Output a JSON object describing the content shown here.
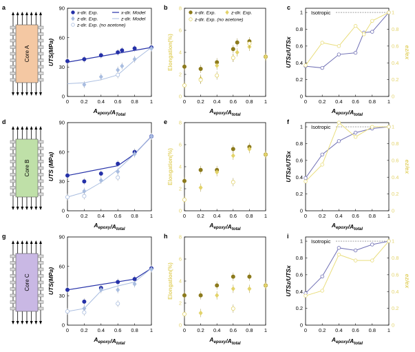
{
  "colors": {
    "dark_blue": "#2531a8",
    "light_blue": "#a9bde0",
    "dark_gold": "#8c7a1c",
    "light_gold": "#e3d36a",
    "ratio_blue": "#6f6fb4",
    "ratio_gold": "#e9dd7c",
    "core_a": "#f4c8a3",
    "core_b": "#bfe0a8",
    "core_c": "#c9b8e4"
  },
  "panel_letters": [
    "a",
    "b",
    "c",
    "d",
    "e",
    "f",
    "g",
    "h",
    "i"
  ],
  "cores": [
    "Core A",
    "Core B",
    "Core C"
  ],
  "labels": {
    "x_uts": "A_epoxy/A_Total",
    "x_uts_2": "A_epoxy/A_total",
    "x_elong": "A_epoxy/A_total",
    "x_ratio": "A_epoxy/A_total",
    "y_uts_a": "UTS(MPa)",
    "y_uts_b": "UTS (MPa)",
    "y_uts_c": "UTS(MPa)",
    "y_elong": "Elongation(%)",
    "y_ratio_left": "UTS_z/UTS_x",
    "y_ratio_right": "e_z/e_x",
    "isotropic": "Isotropic"
  },
  "legend_uts": [
    "x-dir. Exp.",
    "z-dir. Exp.",
    "z-dir. Exp. (no acetone)",
    "x-dir. Model",
    "z-dir. Model"
  ],
  "legend_elong": [
    "x-dir. Exp.",
    "z-dir. Exp.",
    "z-dir. Exp. (no acetone)"
  ],
  "chart_data": [
    {
      "panel": "a",
      "type": "scatter",
      "core": "Core A",
      "xlabel": "A_epoxy/A_Total",
      "ylabel": "UTS(MPa)",
      "xlim": [
        0,
        1
      ],
      "ylim": [
        0,
        90
      ],
      "xticks": [
        0,
        0.2,
        0.4,
        0.6,
        0.8,
        1
      ],
      "yticks": [
        0,
        30,
        60,
        90
      ],
      "series": [
        {
          "name": "x-dir. Exp.",
          "kind": "points",
          "x": [
            0,
            0.2,
            0.4,
            0.6,
            0.65,
            0.8,
            1
          ],
          "y": [
            36,
            38,
            42,
            45,
            47,
            49,
            50
          ]
        },
        {
          "name": "z-dir. Exp.",
          "kind": "points",
          "x": [
            0.2,
            0.4,
            0.6,
            0.65,
            0.8,
            1
          ],
          "y": [
            12,
            20,
            27,
            31,
            38,
            49
          ]
        },
        {
          "name": "z-dir. Exp. (no acetone)",
          "kind": "open",
          "x": [
            0.6
          ],
          "y": [
            22
          ]
        },
        {
          "name": "x-dir. Model",
          "kind": "line",
          "x": [
            0,
            1
          ],
          "y": [
            35,
            50
          ]
        },
        {
          "name": "z-dir. Model",
          "kind": "line",
          "x": [
            0,
            0.2,
            0.4,
            0.6,
            0.8,
            1
          ],
          "y": [
            13,
            14,
            17,
            22,
            37,
            50
          ]
        }
      ]
    },
    {
      "panel": "b",
      "type": "scatter",
      "xlabel": "A_epoxy/A_total",
      "ylabel": "Elongation(%)",
      "xlim": [
        0,
        1
      ],
      "ylim": [
        0,
        8
      ],
      "xticks": [
        0,
        0.2,
        0.4,
        0.6,
        0.8,
        1
      ],
      "yticks": [
        0,
        2,
        4,
        6,
        8
      ],
      "series": [
        {
          "name": "x-dir. Exp.",
          "kind": "points",
          "x": [
            0,
            0.2,
            0.4,
            0.6,
            0.65,
            0.8,
            1
          ],
          "y": [
            2.7,
            2.5,
            3.1,
            4.3,
            4.9,
            5.0,
            3.6
          ]
        },
        {
          "name": "z-dir. Exp.",
          "kind": "points",
          "x": [
            0.2,
            0.4,
            0.6,
            0.65,
            0.8,
            1
          ],
          "y": [
            1.6,
            2.8,
            3.5,
            4.0,
            4.5,
            3.6
          ]
        },
        {
          "name": "z-dir. Exp. (no acetone)",
          "kind": "open",
          "x": [
            0,
            0.2,
            0.4,
            0.6,
            0.8
          ],
          "y": [
            1.0,
            1.5,
            1.9,
            3.5,
            4.8
          ]
        }
      ]
    },
    {
      "panel": "c",
      "type": "line",
      "xlabel": "A_epoxy/A_total",
      "ylabel": "UTS_z/UTS_x",
      "ylabel_right": "e_z/e_x",
      "xlim": [
        0,
        1
      ],
      "ylim": [
        0,
        1
      ],
      "xticks": [
        0,
        0.2,
        0.4,
        0.6,
        0.8,
        1
      ],
      "yticks": [
        0,
        0.2,
        0.4,
        0.6,
        0.8,
        1
      ],
      "series": [
        {
          "name": "UTS_z/UTS_x",
          "x": [
            0,
            0.2,
            0.4,
            0.6,
            0.7,
            0.8,
            1
          ],
          "y": [
            0.36,
            0.34,
            0.5,
            0.52,
            0.76,
            0.77,
            1.0
          ]
        },
        {
          "name": "e_z/e_x",
          "x": [
            0,
            0.2,
            0.4,
            0.6,
            0.7,
            0.8,
            1
          ],
          "y": [
            0.37,
            0.64,
            0.6,
            0.84,
            0.74,
            0.9,
            1.0
          ]
        }
      ]
    },
    {
      "panel": "d",
      "type": "scatter",
      "core": "Core B",
      "xlabel": "A_epoxy/A_total",
      "ylabel": "UTS (MPa)",
      "xlim": [
        0,
        1
      ],
      "ylim": [
        0,
        90
      ],
      "xticks": [
        0,
        0.2,
        0.4,
        0.6,
        0.8,
        1
      ],
      "yticks": [
        0,
        30,
        60,
        90
      ],
      "series": [
        {
          "name": "x-dir. Exp.",
          "kind": "points",
          "x": [
            0,
            0.2,
            0.4,
            0.6,
            0.8,
            1
          ],
          "y": [
            36,
            30,
            38,
            48,
            60,
            76
          ]
        },
        {
          "name": "z-dir. Exp.",
          "kind": "points",
          "x": [
            0.2,
            0.4,
            0.6,
            0.8,
            1
          ],
          "y": [
            20,
            31,
            40,
            58,
            76
          ]
        },
        {
          "name": "z-dir. Exp. (no acetone)",
          "kind": "open",
          "x": [
            0,
            0.2,
            0.6
          ],
          "y": [
            14,
            15,
            34
          ]
        },
        {
          "name": "x-dir. Model",
          "kind": "line",
          "x": [
            0,
            0.6,
            0.8,
            1
          ],
          "y": [
            36,
            46,
            58,
            76
          ]
        },
        {
          "name": "z-dir. Model",
          "kind": "line",
          "x": [
            0,
            0.2,
            0.4,
            0.6,
            0.8,
            1
          ],
          "y": [
            14,
            19,
            29,
            42,
            58,
            76
          ]
        }
      ]
    },
    {
      "panel": "e",
      "type": "scatter",
      "xlabel": "A_epoxy/A_total",
      "ylabel": "Elongation(%)",
      "xlim": [
        0,
        1
      ],
      "ylim": [
        0,
        8
      ],
      "xticks": [
        0,
        0.2,
        0.4,
        0.6,
        0.8,
        1
      ],
      "yticks": [
        0,
        2,
        4,
        6,
        8
      ],
      "series": [
        {
          "name": "x-dir. Exp.",
          "kind": "points",
          "x": [
            0,
            0.2,
            0.4,
            0.6,
            0.8,
            1
          ],
          "y": [
            2.7,
            3.7,
            3.7,
            5.6,
            5.8,
            5.1
          ]
        },
        {
          "name": "z-dir. Exp.",
          "kind": "points",
          "x": [
            0.2,
            0.4,
            0.6,
            0.8,
            1
          ],
          "y": [
            2.1,
            3.5,
            5.0,
            5.6,
            5.1
          ]
        },
        {
          "name": "z-dir. Exp. (no acetone)",
          "kind": "open",
          "x": [
            0,
            0.6
          ],
          "y": [
            1.0,
            2.6
          ]
        }
      ]
    },
    {
      "panel": "f",
      "type": "line",
      "xlabel": "A_epoxy/A_total",
      "ylabel": "UTS_z/UTS_x",
      "ylabel_right": "e_z/e_x",
      "xlim": [
        0,
        1
      ],
      "ylim": [
        0,
        1
      ],
      "xticks": [
        0,
        0.2,
        0.4,
        0.6,
        0.8,
        1
      ],
      "yticks": [
        0,
        0.2,
        0.4,
        0.6,
        0.8,
        1
      ],
      "series": [
        {
          "name": "UTS_z/UTS_x",
          "x": [
            0,
            0.2,
            0.4,
            0.6,
            0.8,
            1
          ],
          "y": [
            0.39,
            0.67,
            0.83,
            0.93,
            0.98,
            1.0
          ]
        },
        {
          "name": "e_z/e_x",
          "x": [
            0,
            0.2,
            0.4,
            0.6,
            0.8,
            1
          ],
          "y": [
            0.35,
            0.55,
            1.05,
            0.88,
            1.0,
            1.0
          ]
        }
      ]
    },
    {
      "panel": "g",
      "type": "scatter",
      "core": "Core C",
      "xlabel": "A_epoxy/A_total",
      "ylabel": "UTS(MPa)",
      "xlim": [
        0,
        1
      ],
      "ylim": [
        0,
        90
      ],
      "xticks": [
        0,
        0.2,
        0.4,
        0.6,
        0.8,
        1
      ],
      "yticks": [
        0,
        30,
        60,
        90
      ],
      "series": [
        {
          "name": "x-dir. Exp.",
          "kind": "points",
          "x": [
            0,
            0.2,
            0.4,
            0.6,
            0.8,
            1
          ],
          "y": [
            36,
            24,
            38,
            44,
            47,
            58
          ]
        },
        {
          "name": "z-dir. Exp.",
          "kind": "points",
          "x": [
            0.2,
            0.4,
            0.6,
            0.8,
            1
          ],
          "y": [
            17,
            36,
            36,
            42,
            57
          ]
        },
        {
          "name": "z-dir. Exp. (no acetone)",
          "kind": "open",
          "x": [
            0,
            0.2,
            0.6
          ],
          "y": [
            14,
            13,
            22
          ]
        },
        {
          "name": "x-dir. Model",
          "kind": "line",
          "x": [
            0,
            0.8,
            1
          ],
          "y": [
            36,
            47,
            58
          ]
        },
        {
          "name": "z-dir. Model",
          "kind": "line",
          "x": [
            0,
            0.2,
            0.4,
            0.6,
            0.8,
            1
          ],
          "y": [
            14,
            17,
            35,
            40,
            44,
            58
          ]
        }
      ]
    },
    {
      "panel": "h",
      "type": "scatter",
      "xlabel": "A_epoxy/A_total",
      "ylabel": "Elongation(%)",
      "xlim": [
        0,
        1
      ],
      "ylim": [
        0,
        8
      ],
      "xticks": [
        0,
        0.2,
        0.4,
        0.6,
        0.8,
        1
      ],
      "yticks": [
        0,
        2,
        4,
        6,
        8
      ],
      "series": [
        {
          "name": "x-dir. Exp.",
          "kind": "points",
          "x": [
            0,
            0.2,
            0.4,
            0.6,
            0.8,
            1
          ],
          "y": [
            2.7,
            2.7,
            3.6,
            4.4,
            4.4,
            3.6
          ]
        },
        {
          "name": "z-dir. Exp.",
          "kind": "points",
          "x": [
            0.2,
            0.4,
            0.6,
            0.8,
            1
          ],
          "y": [
            1.1,
            2.7,
            3.3,
            3.3,
            3.6
          ]
        },
        {
          "name": "z-dir. Exp. (no acetone)",
          "kind": "open",
          "x": [
            0,
            0.6
          ],
          "y": [
            1.0,
            1.5
          ]
        }
      ]
    },
    {
      "panel": "i",
      "type": "line",
      "xlabel": "A_epoxy/A_total",
      "ylabel": "UTS_z/UTS_x",
      "ylabel_right": "e_z/e_x",
      "xlim": [
        0,
        1
      ],
      "ylim": [
        0,
        1
      ],
      "xticks": [
        0,
        0.2,
        0.4,
        0.6,
        0.8,
        1
      ],
      "yticks": [
        0,
        0.2,
        0.4,
        0.6,
        0.8,
        1
      ],
      "series": [
        {
          "name": "UTS_z/UTS_x",
          "x": [
            0,
            0.2,
            0.4,
            0.6,
            0.8,
            1
          ],
          "y": [
            0.38,
            0.58,
            0.92,
            0.89,
            0.96,
            1.0
          ]
        },
        {
          "name": "e_z/e_x",
          "x": [
            0,
            0.2,
            0.4,
            0.6,
            0.8,
            1
          ],
          "y": [
            0.35,
            0.41,
            0.84,
            0.77,
            0.77,
            1.0
          ]
        }
      ]
    }
  ]
}
